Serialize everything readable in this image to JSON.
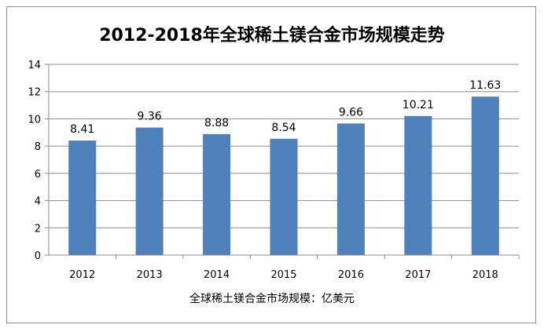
{
  "chart_data": {
    "type": "bar",
    "title": "2012-2018年全球稀土镁合金市场规模走势",
    "xlabel": "全球稀土镁合金市场规模：亿美元",
    "ylabel": "",
    "categories": [
      "2012",
      "2013",
      "2014",
      "2015",
      "2016",
      "2017",
      "2018"
    ],
    "values": [
      8.41,
      9.36,
      8.88,
      8.54,
      9.66,
      10.21,
      11.63
    ],
    "data_labels": [
      "8.41",
      "9.36",
      "8.88",
      "8.54",
      "9.66",
      "10.21",
      "11.63"
    ],
    "ylim": [
      0,
      14
    ],
    "yticks": [
      0,
      2,
      4,
      6,
      8,
      10,
      12,
      14
    ],
    "grid": true,
    "legend": "none",
    "bar_color": "#4f81bd"
  }
}
